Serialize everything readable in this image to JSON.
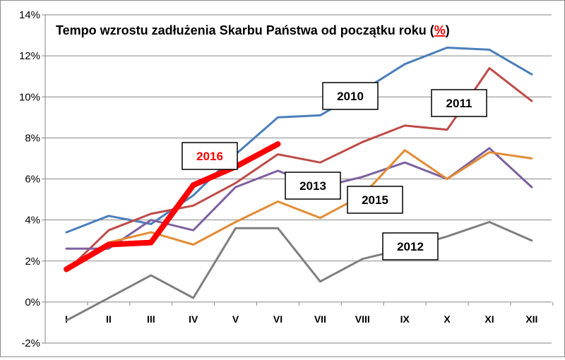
{
  "chart_data": {
    "type": "line",
    "title": "Tempo wzrostu zadłużenia Skarbu Państwa od początku roku (",
    "title_unit": "%",
    "title_close": ")",
    "categories": [
      "I",
      "II",
      "III",
      "IV",
      "V",
      "VI",
      "VII",
      "VIII",
      "IX",
      "X",
      "XI",
      "XII"
    ],
    "ylim": [
      -2,
      14
    ],
    "yticks": [
      -2,
      0,
      2,
      4,
      6,
      8,
      10,
      12,
      14
    ],
    "ytick_suffix": "%",
    "grid": "horizontal",
    "series": [
      {
        "name": "2010",
        "color": "#4a7ebb",
        "width": 3,
        "values": [
          3.4,
          4.2,
          3.8,
          5.2,
          7.2,
          9.0,
          9.1,
          10.3,
          11.6,
          12.4,
          12.3,
          11.1
        ]
      },
      {
        "name": "2011",
        "color": "#be4b48",
        "width": 3,
        "values": [
          1.5,
          3.5,
          4.3,
          4.7,
          5.8,
          7.2,
          6.8,
          7.8,
          8.6,
          8.4,
          11.4,
          9.8
        ]
      },
      {
        "name": "2012",
        "color": "#7f7f7f",
        "width": 3,
        "values": [
          -0.9,
          0.2,
          1.3,
          0.2,
          3.6,
          3.6,
          1.0,
          2.1,
          2.6,
          3.2,
          3.9,
          3.0
        ]
      },
      {
        "name": "2013",
        "color": "#7d60a0",
        "width": 3,
        "values": [
          2.6,
          2.6,
          4.0,
          3.5,
          5.6,
          6.4,
          5.6,
          6.1,
          6.8,
          6.0,
          7.5,
          5.6
        ]
      },
      {
        "name": "2015",
        "color": "#e38b35",
        "width": 3,
        "values": [
          1.5,
          2.9,
          3.4,
          2.8,
          3.9,
          4.9,
          4.1,
          5.2,
          7.4,
          6.0,
          7.3,
          7.0
        ]
      },
      {
        "name": "2016",
        "color": "#ff0000",
        "width": 8,
        "values": [
          1.6,
          2.8,
          2.9,
          5.7,
          6.6,
          7.7
        ]
      }
    ],
    "labels": [
      {
        "series": "2010",
        "text": "2010",
        "color": "#000000"
      },
      {
        "series": "2011",
        "text": "2011",
        "color": "#000000"
      },
      {
        "series": "2012",
        "text": "2012",
        "color": "#000000"
      },
      {
        "series": "2013",
        "text": "2013",
        "color": "#000000"
      },
      {
        "series": "2015",
        "text": "2015",
        "color": "#000000"
      },
      {
        "series": "2016",
        "text": "2016",
        "color": "#ff0000"
      }
    ]
  }
}
